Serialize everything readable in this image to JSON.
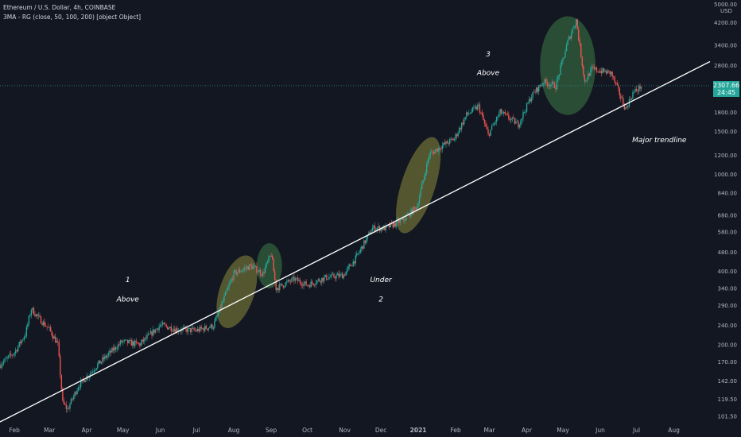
{
  "header": {
    "symbol_line": "Ethereum / U.S. Dollar, 4h, COINBASE",
    "indicator_line": "3MA - RG (close, 50, 100, 200) [object Object]"
  },
  "price_tag": {
    "price": "2307.66",
    "countdown": "24:45",
    "color": "#26a69a"
  },
  "colors": {
    "background": "#131722",
    "up": "#26a69a",
    "down": "#ef5350",
    "trendline": "#ffffff",
    "axis_text": "#b2b5be",
    "highlight_yellow": "#8a8a3a",
    "highlight_green": "#3e7a46"
  },
  "chart_data": {
    "type": "candlestick",
    "y_scale": "log",
    "ylim": [
      96,
      5000
    ],
    "xlim": [
      "2020-01-20",
      "2021-08-31"
    ],
    "y_unit_label": "USD",
    "y_ticks": [
      {
        "value": 5000,
        "label": "5000.00"
      },
      {
        "value": 4200,
        "label": "4200.00"
      },
      {
        "value": 3400,
        "label": "3400.00"
      },
      {
        "value": 2800,
        "label": "2800.00"
      },
      {
        "value": 2200,
        "label": "2200.00"
      },
      {
        "value": 1800,
        "label": "1800.00"
      },
      {
        "value": 1500,
        "label": "1500.00"
      },
      {
        "value": 1200,
        "label": "1200.00"
      },
      {
        "value": 1000,
        "label": "1000.00"
      },
      {
        "value": 840,
        "label": "840.00"
      },
      {
        "value": 680,
        "label": "680.00"
      },
      {
        "value": 580,
        "label": "580.00"
      },
      {
        "value": 480,
        "label": "480.00"
      },
      {
        "value": 400,
        "label": "400.00"
      },
      {
        "value": 340,
        "label": "340.00"
      },
      {
        "value": 290,
        "label": "290.00"
      },
      {
        "value": 240,
        "label": "240.00"
      },
      {
        "value": 200,
        "label": "200.00"
      },
      {
        "value": 170,
        "label": "170.00"
      },
      {
        "value": 142,
        "label": "142.00"
      },
      {
        "value": 119.5,
        "label": "119.50"
      },
      {
        "value": 101.5,
        "label": "101.50"
      }
    ],
    "x_ticks": [
      {
        "date": "2020-02-01",
        "label": "Feb"
      },
      {
        "date": "2020-03-01",
        "label": "Mar"
      },
      {
        "date": "2020-04-01",
        "label": "Apr"
      },
      {
        "date": "2020-05-01",
        "label": "May"
      },
      {
        "date": "2020-06-01",
        "label": "Jun"
      },
      {
        "date": "2020-07-01",
        "label": "Jul"
      },
      {
        "date": "2020-08-01",
        "label": "Aug"
      },
      {
        "date": "2020-09-01",
        "label": "Sep"
      },
      {
        "date": "2020-10-01",
        "label": "Oct"
      },
      {
        "date": "2020-11-01",
        "label": "Nov"
      },
      {
        "date": "2020-12-01",
        "label": "Dec"
      },
      {
        "date": "2021-01-01",
        "label": "2021"
      },
      {
        "date": "2021-02-01",
        "label": "Feb"
      },
      {
        "date": "2021-03-01",
        "label": "Mar"
      },
      {
        "date": "2021-04-01",
        "label": "Apr"
      },
      {
        "date": "2021-05-01",
        "label": "May"
      },
      {
        "date": "2021-06-01",
        "label": "Jun"
      },
      {
        "date": "2021-07-01",
        "label": "Jul"
      },
      {
        "date": "2021-08-01",
        "label": "Aug"
      }
    ],
    "price_path": [
      [
        "2020-01-20",
        165
      ],
      [
        "2020-02-01",
        185
      ],
      [
        "2020-02-10",
        220
      ],
      [
        "2020-02-15",
        280
      ],
      [
        "2020-02-20",
        260
      ],
      [
        "2020-03-01",
        230
      ],
      [
        "2020-03-08",
        200
      ],
      [
        "2020-03-12",
        115
      ],
      [
        "2020-03-16",
        108
      ],
      [
        "2020-03-25",
        135
      ],
      [
        "2020-04-10",
        165
      ],
      [
        "2020-04-30",
        205
      ],
      [
        "2020-05-15",
        200
      ],
      [
        "2020-06-01",
        240
      ],
      [
        "2020-06-15",
        230
      ],
      [
        "2020-07-01",
        228
      ],
      [
        "2020-07-15",
        238
      ],
      [
        "2020-07-25",
        320
      ],
      [
        "2020-08-01",
        390
      ],
      [
        "2020-08-15",
        420
      ],
      [
        "2020-08-25",
        390
      ],
      [
        "2020-09-01",
        470
      ],
      [
        "2020-09-05",
        340
      ],
      [
        "2020-09-20",
        370
      ],
      [
        "2020-10-01",
        350
      ],
      [
        "2020-10-15",
        375
      ],
      [
        "2020-10-31",
        385
      ],
      [
        "2020-11-10",
        450
      ],
      [
        "2020-11-24",
        600
      ],
      [
        "2020-12-05",
        600
      ],
      [
        "2020-12-20",
        650
      ],
      [
        "2020-12-31",
        740
      ],
      [
        "2021-01-10",
        1200
      ],
      [
        "2021-01-20",
        1300
      ],
      [
        "2021-01-31",
        1400
      ],
      [
        "2021-02-10",
        1750
      ],
      [
        "2021-02-20",
        1900
      ],
      [
        "2021-02-28",
        1450
      ],
      [
        "2021-03-10",
        1800
      ],
      [
        "2021-03-25",
        1600
      ],
      [
        "2021-04-05",
        2100
      ],
      [
        "2021-04-15",
        2400
      ],
      [
        "2021-04-25",
        2300
      ],
      [
        "2021-05-05",
        3500
      ],
      [
        "2021-05-12",
        4300
      ],
      [
        "2021-05-19",
        2400
      ],
      [
        "2021-05-25",
        2700
      ],
      [
        "2021-06-10",
        2600
      ],
      [
        "2021-06-22",
        1850
      ],
      [
        "2021-06-28",
        2150
      ],
      [
        "2021-07-05",
        2300
      ]
    ],
    "last_price": 2307.66,
    "trendline": {
      "start": [
        "2020-01-20",
        96
      ],
      "end": [
        "2021-08-31",
        2900
      ]
    },
    "highlights": [
      {
        "from": "2020-07-20",
        "to": "2020-08-18",
        "low": 230,
        "high": 470,
        "color": "yellow"
      },
      {
        "from": "2020-08-20",
        "to": "2020-09-10",
        "low": 340,
        "high": 520,
        "color": "green"
      },
      {
        "from": "2020-12-18",
        "to": "2021-01-15",
        "low": 560,
        "high": 1450,
        "color": "yellow"
      },
      {
        "from": "2021-04-12",
        "to": "2021-05-28",
        "low": 1750,
        "high": 4450,
        "color": "green"
      }
    ],
    "annotations": [
      {
        "text": "1",
        "date": "2020-05-05",
        "price": 360
      },
      {
        "text": "Above",
        "date": "2020-05-05",
        "price": 300
      },
      {
        "text": "Under",
        "date": "2020-12-01",
        "price": 360
      },
      {
        "text": "2",
        "date": "2020-12-01",
        "price": 300
      },
      {
        "text": "3",
        "date": "2021-02-28",
        "price": 3050
      },
      {
        "text": "Above",
        "date": "2021-02-28",
        "price": 2550
      },
      {
        "text": "Major trendline",
        "date": "2021-07-20",
        "price": 1350
      }
    ]
  }
}
